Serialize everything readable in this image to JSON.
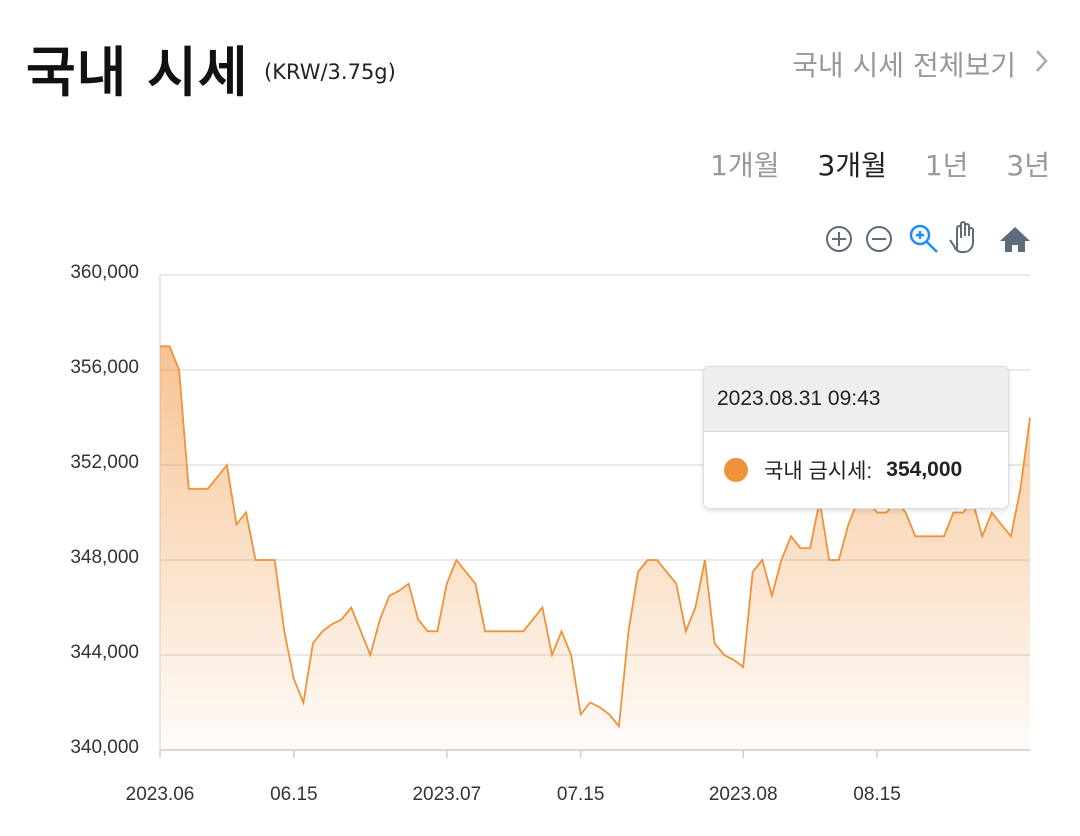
{
  "header": {
    "title": "국내 시세",
    "unit": "(KRW/3.75g)",
    "link": "국내 시세 전체보기"
  },
  "tabs": {
    "items": [
      "1개월",
      "3개월",
      "1년",
      "3년"
    ],
    "active": 1
  },
  "tooltip": {
    "time": "2023.08.31 09:43",
    "series_label": "국내 금시세:",
    "value": "354,000"
  },
  "chart_data": {
    "type": "area",
    "x": [
      "2023-06-01",
      "2023-06-02",
      "2023-06-03",
      "2023-06-04",
      "2023-06-05",
      "2023-06-06",
      "2023-06-07",
      "2023-06-08",
      "2023-06-09",
      "2023-06-10",
      "2023-06-11",
      "2023-06-12",
      "2023-06-13",
      "2023-06-14",
      "2023-06-15",
      "2023-06-16",
      "2023-06-17",
      "2023-06-18",
      "2023-06-19",
      "2023-06-20",
      "2023-06-21",
      "2023-06-22",
      "2023-06-23",
      "2023-06-24",
      "2023-06-25",
      "2023-06-26",
      "2023-06-27",
      "2023-06-28",
      "2023-06-29",
      "2023-06-30",
      "2023-07-01",
      "2023-07-02",
      "2023-07-03",
      "2023-07-04",
      "2023-07-05",
      "2023-07-06",
      "2023-07-07",
      "2023-07-08",
      "2023-07-09",
      "2023-07-10",
      "2023-07-11",
      "2023-07-12",
      "2023-07-13",
      "2023-07-14",
      "2023-07-15",
      "2023-07-16",
      "2023-07-17",
      "2023-07-18",
      "2023-07-19",
      "2023-07-20",
      "2023-07-21",
      "2023-07-22",
      "2023-07-23",
      "2023-07-24",
      "2023-07-25",
      "2023-07-26",
      "2023-07-27",
      "2023-07-28",
      "2023-07-29",
      "2023-07-30",
      "2023-07-31",
      "2023-08-01",
      "2023-08-02",
      "2023-08-03",
      "2023-08-04",
      "2023-08-05",
      "2023-08-06",
      "2023-08-07",
      "2023-08-08",
      "2023-08-09",
      "2023-08-10",
      "2023-08-11",
      "2023-08-12",
      "2023-08-13",
      "2023-08-14",
      "2023-08-15",
      "2023-08-16",
      "2023-08-17",
      "2023-08-18",
      "2023-08-19",
      "2023-08-20",
      "2023-08-21",
      "2023-08-22",
      "2023-08-23",
      "2023-08-24",
      "2023-08-25",
      "2023-08-26",
      "2023-08-27",
      "2023-08-28",
      "2023-08-29",
      "2023-08-30",
      "2023-08-31"
    ],
    "series": [
      {
        "name": "국내 금시세",
        "color": "#f0923a",
        "values": [
          357000,
          357000,
          356000,
          351000,
          351000,
          351000,
          351500,
          352000,
          349500,
          350000,
          348000,
          348000,
          348000,
          345000,
          343000,
          342000,
          344500,
          345000,
          345300,
          345500,
          346000,
          345000,
          344000,
          345500,
          346500,
          346700,
          347000,
          345500,
          345000,
          345000,
          347000,
          348000,
          347500,
          347000,
          345000,
          345000,
          345000,
          345000,
          345000,
          345500,
          346000,
          344000,
          345000,
          344000,
          341500,
          342000,
          341800,
          341500,
          341000,
          345000,
          347500,
          348000,
          348000,
          347500,
          347000,
          345000,
          346000,
          348000,
          344500,
          344000,
          343800,
          343500,
          347500,
          348000,
          346500,
          348000,
          349000,
          348500,
          348500,
          350500,
          348000,
          348000,
          349500,
          350500,
          350500,
          350000,
          350000,
          350500,
          350000,
          349000,
          349000,
          349000,
          349000,
          350000,
          350000,
          350500,
          349000,
          350000,
          349500,
          349000,
          351000,
          354000
        ]
      }
    ],
    "xlim": [
      "2023-06-01",
      "2023-08-31"
    ],
    "xticks": [
      {
        "value": "2023-06-01",
        "label": "2023.06"
      },
      {
        "value": "2023-06-15",
        "label": "06.15"
      },
      {
        "value": "2023-07-01",
        "label": "2023.07"
      },
      {
        "value": "2023-07-15",
        "label": "07.15"
      },
      {
        "value": "2023-08-01",
        "label": "2023.08"
      },
      {
        "value": "2023-08-15",
        "label": "08.15"
      }
    ],
    "ylim": [
      340000,
      360000
    ],
    "yticks": [
      {
        "value": 340000,
        "label": "340,000"
      },
      {
        "value": 344000,
        "label": "344,000"
      },
      {
        "value": 348000,
        "label": "348,000"
      },
      {
        "value": 352000,
        "label": "352,000"
      },
      {
        "value": 356000,
        "label": "356,000"
      },
      {
        "value": 360000,
        "label": "360,000"
      }
    ],
    "grid": true
  }
}
